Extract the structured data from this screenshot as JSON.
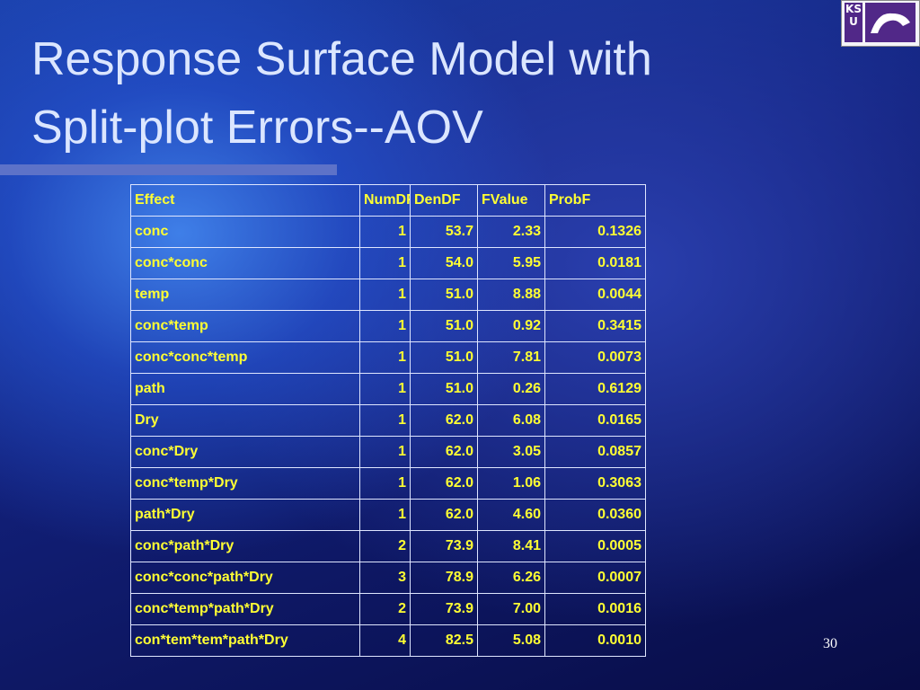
{
  "header": {
    "title_lines": [
      "Response Surface Model with",
      "Split-plot Errors--AOV"
    ],
    "logo": "KSU"
  },
  "table": {
    "columns": [
      "Effect",
      "NumDF",
      "DenDF",
      "FValue",
      "ProbF"
    ],
    "rows": [
      [
        "conc",
        "1",
        "53.7",
        "2.33",
        "0.1326"
      ],
      [
        "conc*conc",
        "1",
        "54.0",
        "5.95",
        "0.0181"
      ],
      [
        "temp",
        "1",
        "51.0",
        "8.88",
        "0.0044"
      ],
      [
        "conc*temp",
        "1",
        "51.0",
        "0.92",
        "0.3415"
      ],
      [
        "conc*conc*temp",
        "1",
        "51.0",
        "7.81",
        "0.0073"
      ],
      [
        "path",
        "1",
        "51.0",
        "0.26",
        "0.6129"
      ],
      [
        "Dry",
        "1",
        "62.0",
        "6.08",
        "0.0165"
      ],
      [
        "conc*Dry",
        "1",
        "62.0",
        "3.05",
        "0.0857"
      ],
      [
        "conc*temp*Dry",
        "1",
        "62.0",
        "1.06",
        "0.3063"
      ],
      [
        "path*Dry",
        "1",
        "62.0",
        "4.60",
        "0.0360"
      ],
      [
        "conc*path*Dry",
        "2",
        "73.9",
        "8.41",
        "0.0005"
      ],
      [
        "conc*conc*path*Dry",
        "3",
        "78.9",
        "6.26",
        "0.0007"
      ],
      [
        "conc*temp*path*Dry",
        "2",
        "73.9",
        "7.00",
        "0.0016"
      ],
      [
        "con*tem*tem*path*Dry",
        "4",
        "82.5",
        "5.08",
        "0.0010"
      ]
    ]
  },
  "footer": {
    "page_number": "30"
  }
}
